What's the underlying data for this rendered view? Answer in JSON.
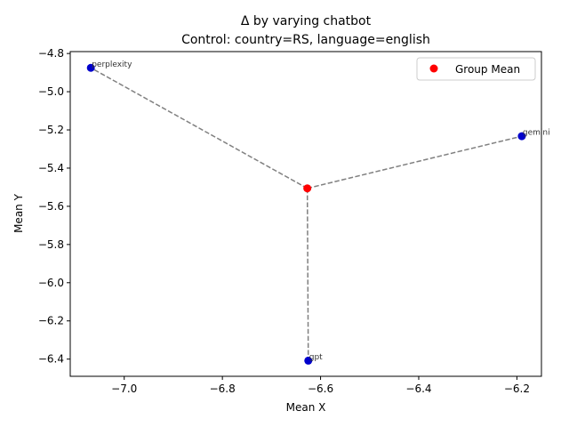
{
  "chart_data": {
    "type": "scatter",
    "title": "Δ by varying chatbot",
    "subtitle": "Control: country=RS, language=english",
    "xlabel": "Mean X",
    "ylabel": "Mean Y",
    "xlim": [
      -7.11,
      -6.15
    ],
    "ylim": [
      -6.49,
      -4.79
    ],
    "x_ticks": [
      -7.0,
      -6.8,
      -6.6,
      -6.4,
      -6.2
    ],
    "x_tick_labels": [
      "−7.0",
      "−6.8",
      "−6.6",
      "−6.4",
      "−6.2"
    ],
    "y_ticks": [
      -6.4,
      -6.2,
      -6.0,
      -5.8,
      -5.6,
      -5.4,
      -5.2,
      -5.0,
      -4.8
    ],
    "y_tick_labels": [
      "−6.4",
      "−6.2",
      "−6.0",
      "−5.8",
      "−5.6",
      "−5.4",
      "−5.2",
      "−5.0",
      "−4.8"
    ],
    "grid": false,
    "legend_position": "top-right",
    "group_mean": {
      "name": "Group Mean",
      "x": -6.627,
      "y": -5.506,
      "color": "#ff0000"
    },
    "points": [
      {
        "label": "perplexity",
        "x": -7.068,
        "y": -4.875,
        "color": "#0000cc"
      },
      {
        "label": "gemini",
        "x": -6.19,
        "y": -5.233,
        "color": "#0000cc"
      },
      {
        "label": "gpt",
        "x": -6.625,
        "y": -6.408,
        "color": "#0000cc"
      }
    ],
    "connector_color": "#808080"
  }
}
